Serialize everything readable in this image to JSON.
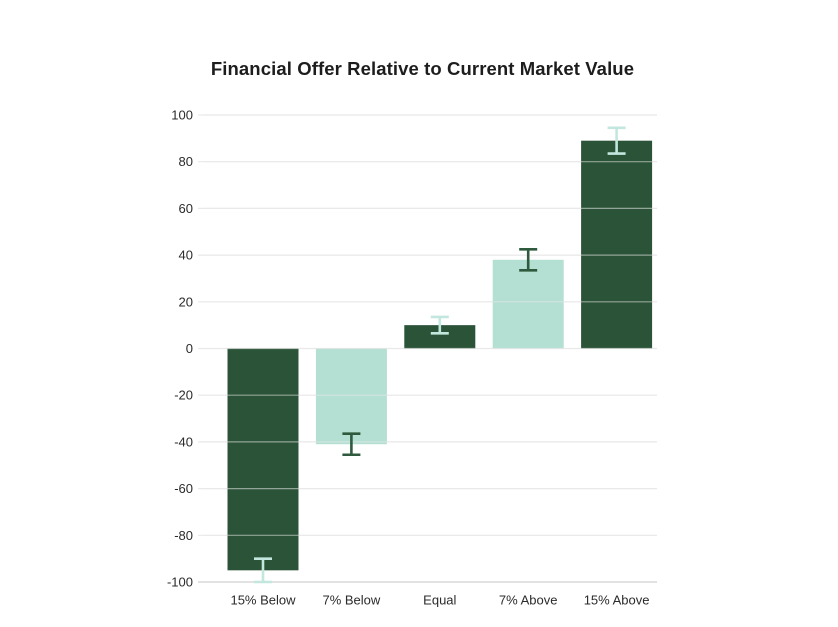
{
  "title": "Financial Offer Relative to Current Market Value",
  "chart_data": {
    "type": "bar",
    "title": "Financial Offer Relative to Current Market Value",
    "categories": [
      "15% Below",
      "7% Below",
      "Equal",
      "7% Above",
      "15% Above"
    ],
    "values": [
      -95,
      -41,
      10,
      38,
      89
    ],
    "error_bars": [
      5,
      4.5,
      3.5,
      4.5,
      5.5
    ],
    "bar_styles": [
      "dark",
      "light",
      "dark",
      "light",
      "dark"
    ],
    "xlabel": "",
    "ylabel": "",
    "ylim": [
      -100,
      100
    ],
    "yticks": [
      100,
      80,
      60,
      40,
      20,
      0,
      -20,
      -40,
      -60,
      -80,
      -100
    ],
    "grid": true,
    "legend": false,
    "colors": {
      "bar_dark": "#2b5338",
      "bar_light": "#b4dfd3",
      "error_on_dark": "#c3e7de",
      "error_on_light": "#2f5a3e",
      "gridline": "#e9e9e9",
      "axis_line": "#d8d8d8",
      "tick_label": "#2b2b2b",
      "title": "#1d1d1d",
      "background": "#ffffff"
    }
  }
}
